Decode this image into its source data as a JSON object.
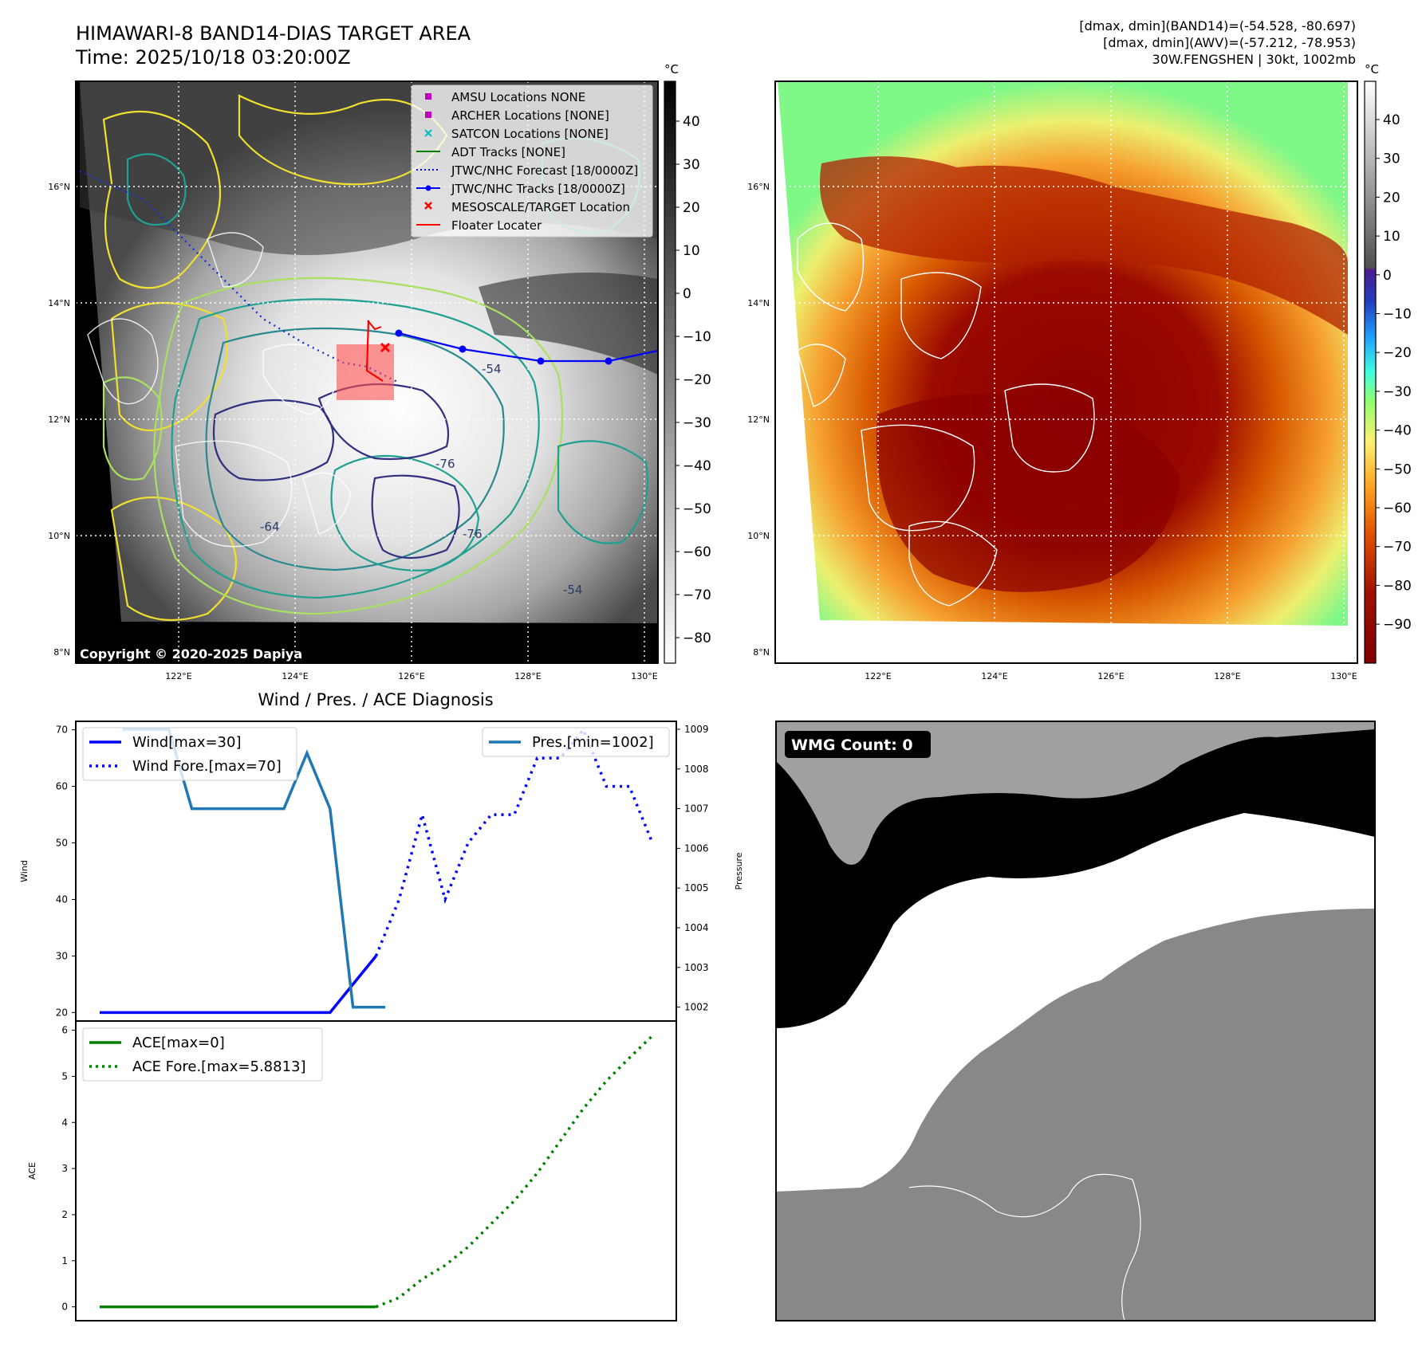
{
  "header": {
    "title_line1": "HIMAWARI-8 BAND14-DIAS TARGET AREA",
    "title_line2": "Time: 2025/10/18 03:20:00Z",
    "stats_line1": "[dmax, dmin](BAND14)=(-54.528, -80.697)",
    "stats_line2": "[dmax, dmin](AWV)=(-57.212, -78.953)",
    "stats_line3": "30W.FENGSHEN | 30kt, 1002mb"
  },
  "copyright": "Copyright © 2020-2025 Dapiya",
  "map": {
    "lat_labels": [
      "16°N",
      "14°N",
      "12°N",
      "10°N",
      "8°N"
    ],
    "lon_labels": [
      "122°E",
      "124°E",
      "126°E",
      "128°E",
      "130°E"
    ],
    "contour_labels": [
      "-54",
      "-76",
      "-76",
      "-64",
      "-54"
    ],
    "legend": [
      {
        "label": "AMSU Locations NONE",
        "color": "#bf00bf",
        "marker": "square"
      },
      {
        "label": "ARCHER Locations [NONE]",
        "color": "#bf00bf",
        "marker": "square"
      },
      {
        "label": "SATCON Locations [NONE]",
        "color": "#00bfbf",
        "marker": "x"
      },
      {
        "label": "ADT Tracks [NONE]",
        "color": "#008000",
        "marker": "line"
      },
      {
        "label": "JTWC/NHC Forecast [18/0000Z]",
        "color": "#0000ff",
        "marker": "dotted"
      },
      {
        "label": "JTWC/NHC Tracks [18/0000Z]",
        "color": "#0000ff",
        "marker": "line-dot"
      },
      {
        "label": "MESOSCALE/TARGET Location",
        "color": "#ff0000",
        "marker": "x"
      },
      {
        "label": "Floater Locater",
        "color": "#ff0000",
        "marker": "line"
      }
    ]
  },
  "colorbars": {
    "unit": "°C",
    "gray_ticks": [
      "40",
      "30",
      "20",
      "10",
      "0",
      "−10",
      "−20",
      "−30",
      "−40",
      "−50",
      "−60",
      "−70",
      "−80"
    ],
    "color_ticks": [
      "40",
      "30",
      "20",
      "10",
      "0",
      "−10",
      "−20",
      "−30",
      "−40",
      "−50",
      "−60",
      "−70",
      "−80",
      "−90"
    ]
  },
  "diag": {
    "title": "Wind / Pres. / ACE Diagnosis",
    "wind_ylabel": "Wind",
    "pres_ylabel": "Pressure",
    "ace_ylabel": "ACE"
  },
  "wmg": {
    "count_label": "WMG Count: 0"
  },
  "chart_data": [
    {
      "type": "line",
      "title": "Wind / Pres. / ACE Diagnosis",
      "ylabel": "Wind",
      "y2label": "Pressure",
      "ylim": [
        18.5,
        71.5
      ],
      "y2lim": [
        1001.65,
        1009.2
      ],
      "yticks": [
        20,
        30,
        40,
        50,
        60,
        70
      ],
      "y2ticks": [
        1002,
        1003,
        1004,
        1005,
        1006,
        1007,
        1008,
        1009
      ],
      "xlim": [
        0,
        24
      ],
      "series": [
        {
          "name": "Wind[max=30]",
          "axis": "left",
          "color": "#0000ff",
          "style": "solid",
          "x": [
            0,
            1,
            2,
            3,
            4,
            5,
            6,
            7,
            8,
            9,
            10,
            11,
            12
          ],
          "y": [
            20,
            20,
            20,
            20,
            20,
            20,
            20,
            20,
            20,
            20,
            20,
            25,
            30
          ]
        },
        {
          "name": "Wind Fore.[max=70]",
          "axis": "left",
          "color": "#0000ff",
          "style": "dotted",
          "x": [
            12,
            13,
            14,
            15,
            16,
            17,
            18,
            19,
            20,
            21,
            22,
            23,
            24
          ],
          "y": [
            30,
            40,
            55,
            40,
            50,
            55,
            55,
            65,
            65,
            70,
            60,
            60,
            50
          ]
        },
        {
          "name": "Pres.[min=1002]",
          "axis": "right",
          "color": "#1f77b4",
          "style": "solid",
          "x": [
            1,
            3,
            4,
            8,
            9,
            10,
            11,
            11.8,
            12.4
          ],
          "y": [
            1009,
            1009,
            1007,
            1007,
            1008.4,
            1007,
            1002,
            1002,
            1002
          ]
        }
      ],
      "legend_left": [
        "Wind[max=30]",
        "Wind Fore.[max=70]"
      ],
      "legend_right": [
        "Pres.[min=1002]"
      ]
    },
    {
      "type": "line",
      "ylabel": "ACE",
      "ylim": [
        -0.3,
        6.2
      ],
      "yticks": [
        0,
        1,
        2,
        3,
        4,
        5,
        6
      ],
      "xlim": [
        0,
        24
      ],
      "series": [
        {
          "name": "ACE[max=0]",
          "color": "#008000",
          "style": "solid",
          "x": [
            0,
            12
          ],
          "y": [
            0,
            0
          ]
        },
        {
          "name": "ACE Fore.[max=5.8813]",
          "color": "#008000",
          "style": "dotted",
          "x": [
            12,
            13,
            14,
            15,
            16,
            17,
            18,
            19,
            20,
            21,
            22,
            23,
            24
          ],
          "y": [
            0,
            0.2,
            0.6,
            0.9,
            1.3,
            1.8,
            2.3,
            2.9,
            3.6,
            4.3,
            4.9,
            5.4,
            5.88
          ]
        }
      ]
    }
  ]
}
